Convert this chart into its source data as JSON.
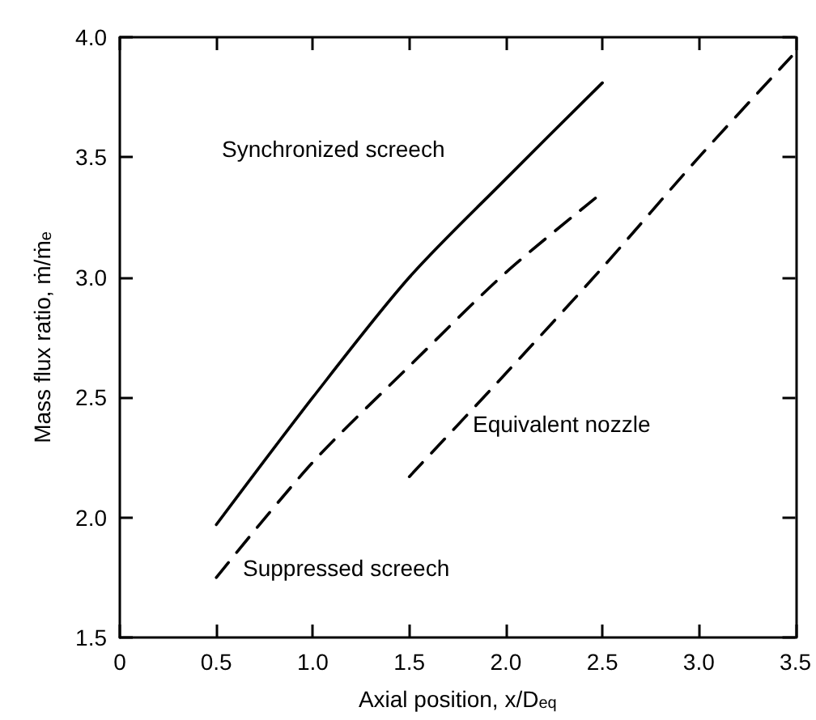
{
  "chart_data": {
    "type": "line",
    "xlabel": "Axial position, x/D$_{eq}$",
    "ylabel": "Mass flux ratio, ṁ/ṁ$_{e}$",
    "xlim": [
      0,
      3.5
    ],
    "xticks": [
      0,
      0.5,
      {
        "value": 1,
        "label": "1.0"
      },
      1.5,
      {
        "value": 2,
        "label": "2.0"
      },
      2.5,
      {
        "value": 3,
        "label": "3.0"
      },
      3.5
    ],
    "ylim": [
      1.5,
      4.0
    ],
    "yticks": [
      1.5,
      {
        "value": 2,
        "label": "2.0"
      },
      2.5,
      {
        "value": 3,
        "label": "3.0"
      },
      3.5,
      {
        "value": 4,
        "label": "4.0"
      }
    ],
    "grid": false,
    "marker": "none",
    "series": [
      {
        "color": "#000000",
        "line_style": "solid",
        "x": [
          0.5,
          1.0,
          1.5,
          2.0,
          2.5
        ],
        "values": [
          1.97,
          2.5,
          3.0,
          3.41,
          3.81
        ]
      },
      {
        "color": "#000000",
        "line_style": "dashed",
        "x": [
          0.5,
          1.0,
          1.5,
          2.0,
          2.48
        ],
        "values": [
          1.75,
          2.23,
          2.63,
          3.02,
          3.34
        ]
      },
      {
        "color": "#000000",
        "line_style": "dashed",
        "x": [
          1.5,
          2.0,
          2.5,
          3.0,
          3.48
        ],
        "values": [
          2.17,
          2.6,
          3.04,
          3.5,
          3.92
        ]
      }
    ],
    "annotations": [
      "Synchronized screech",
      "Suppressed screech",
      "Equivalent nozzle"
    ]
  }
}
